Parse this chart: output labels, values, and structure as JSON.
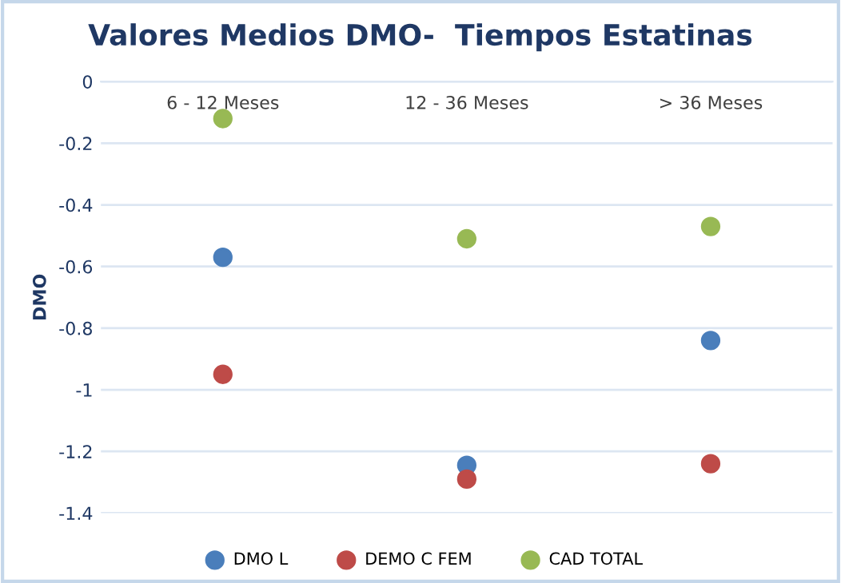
{
  "chart_data": {
    "type": "scatter",
    "title": "Valores Medios DMO-  Tiempos Estatinas",
    "ylabel": "DMO",
    "categories": [
      "6 - 12 Meses",
      "12 - 36 Meses",
      "> 36 Meses"
    ],
    "series": [
      {
        "name": "DMO L",
        "color": "#4a7ebb",
        "values": [
          -0.57,
          -1.245,
          -0.84
        ]
      },
      {
        "name": "DEMO C FEM",
        "color": "#be4b48",
        "values": [
          -0.95,
          -1.29,
          -1.24
        ]
      },
      {
        "name": "CAD TOTAL",
        "color": "#98b954",
        "values": [
          -0.12,
          -0.51,
          -0.47
        ]
      }
    ],
    "ylim": [
      -1.4,
      0
    ],
    "yticks": [
      0,
      -0.2,
      -0.4,
      -0.6,
      -0.8,
      -1,
      -1.2,
      -1.4
    ],
    "grid": "y",
    "legend": "bottom",
    "marker": "circle"
  }
}
